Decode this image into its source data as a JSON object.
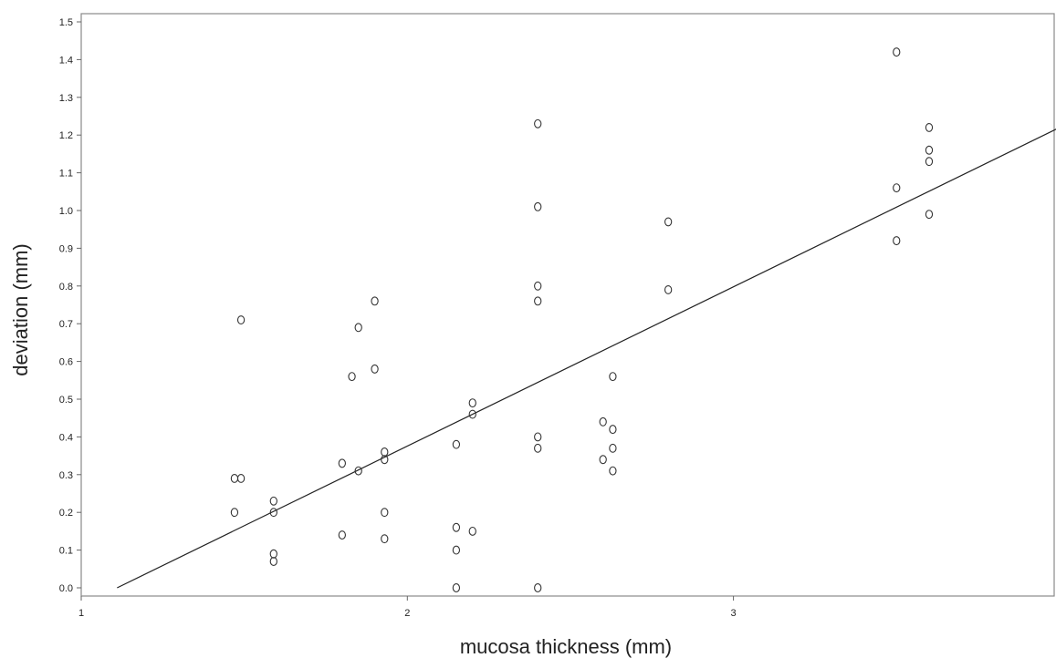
{
  "chart_data": {
    "type": "scatter",
    "title": "",
    "xlabel": "mucosa thickness (mm)",
    "ylabel": "deviation (mm)",
    "xlim": [
      1,
      4
    ],
    "ylim": [
      0,
      1.5
    ],
    "xticks": [
      1,
      2,
      3
    ],
    "xtick_labels": [
      "1",
      "2",
      "3"
    ],
    "yticks": [
      0.0,
      0.1,
      0.2,
      0.3,
      0.4,
      0.5,
      0.6,
      0.7,
      0.8,
      0.9,
      1.0,
      1.1,
      1.2,
      1.3,
      1.4,
      1.5
    ],
    "ytick_labels": [
      "0.0",
      "0.1",
      "0.2",
      "0.3",
      "0.4",
      "0.5",
      "0.6",
      "0.7",
      "0.8",
      "0.9",
      "1.0",
      "1.1",
      "1.2",
      "1.3",
      "1.4",
      "1.5"
    ],
    "grid": false,
    "marker": "open-circle",
    "points": [
      {
        "x": 1.47,
        "y": 0.2
      },
      {
        "x": 1.47,
        "y": 0.29
      },
      {
        "x": 1.49,
        "y": 0.29
      },
      {
        "x": 1.49,
        "y": 0.71
      },
      {
        "x": 1.59,
        "y": 0.07
      },
      {
        "x": 1.59,
        "y": 0.09
      },
      {
        "x": 1.59,
        "y": 0.2
      },
      {
        "x": 1.59,
        "y": 0.23
      },
      {
        "x": 1.8,
        "y": 0.14
      },
      {
        "x": 1.8,
        "y": 0.33
      },
      {
        "x": 1.83,
        "y": 0.56
      },
      {
        "x": 1.85,
        "y": 0.31
      },
      {
        "x": 1.85,
        "y": 0.69
      },
      {
        "x": 1.9,
        "y": 0.58
      },
      {
        "x": 1.9,
        "y": 0.76
      },
      {
        "x": 1.93,
        "y": 0.13
      },
      {
        "x": 1.93,
        "y": 0.2
      },
      {
        "x": 1.93,
        "y": 0.34
      },
      {
        "x": 1.93,
        "y": 0.36
      },
      {
        "x": 2.15,
        "y": 0.0
      },
      {
        "x": 2.15,
        "y": 0.1
      },
      {
        "x": 2.15,
        "y": 0.16
      },
      {
        "x": 2.15,
        "y": 0.38
      },
      {
        "x": 2.2,
        "y": 0.15
      },
      {
        "x": 2.2,
        "y": 0.46
      },
      {
        "x": 2.2,
        "y": 0.49
      },
      {
        "x": 2.4,
        "y": 0.0
      },
      {
        "x": 2.4,
        "y": 0.37
      },
      {
        "x": 2.4,
        "y": 0.4
      },
      {
        "x": 2.4,
        "y": 0.76
      },
      {
        "x": 2.4,
        "y": 0.8
      },
      {
        "x": 2.4,
        "y": 1.01
      },
      {
        "x": 2.4,
        "y": 1.23
      },
      {
        "x": 2.6,
        "y": 0.34
      },
      {
        "x": 2.6,
        "y": 0.44
      },
      {
        "x": 2.63,
        "y": 0.31
      },
      {
        "x": 2.63,
        "y": 0.37
      },
      {
        "x": 2.63,
        "y": 0.42
      },
      {
        "x": 2.63,
        "y": 0.56
      },
      {
        "x": 2.8,
        "y": 0.79
      },
      {
        "x": 2.8,
        "y": 0.97
      },
      {
        "x": 3.5,
        "y": 0.92
      },
      {
        "x": 3.5,
        "y": 1.06
      },
      {
        "x": 3.5,
        "y": 1.42
      },
      {
        "x": 3.6,
        "y": 0.99
      },
      {
        "x": 3.6,
        "y": 1.13
      },
      {
        "x": 3.6,
        "y": 1.16
      },
      {
        "x": 3.6,
        "y": 1.22
      }
    ],
    "fit_line": {
      "x": [
        1.11,
        4.0
      ],
      "y": [
        0.0,
        1.22
      ]
    }
  }
}
